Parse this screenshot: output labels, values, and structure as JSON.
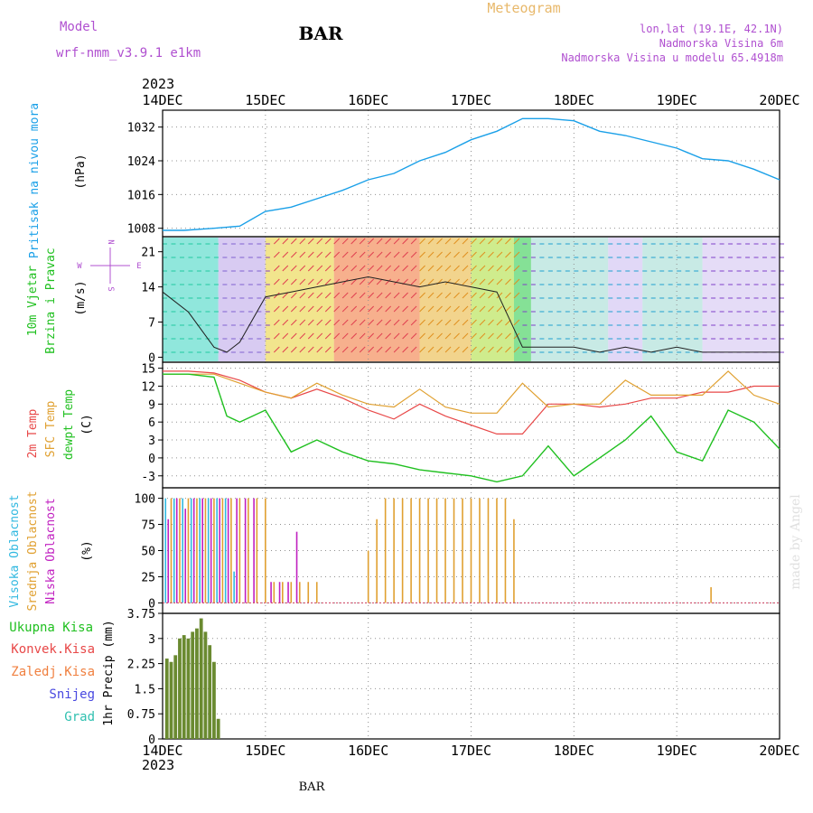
{
  "header": {
    "title": "Meteogram",
    "station": "BAR",
    "model_label": "Model",
    "model_name": "wrf-nmm_v3.9.1  e1km",
    "coords": "lon,lat (19.1E, 42.1N)",
    "elevation": "Nadmorska Visina 6m",
    "model_elevation": "Nadmorska Visina u modelu 65.4918m",
    "year": "2023",
    "footer_station": "BAR",
    "watermark": "made by Angel"
  },
  "colors": {
    "title": "#e8b86a",
    "model": "#b050d0",
    "pressure": "#1aa0e8",
    "t2m": "#e84848",
    "tsfc": "#e0a030",
    "dewpt": "#20c020",
    "cloud_high": "#30b8e0",
    "cloud_mid": "#e0a030",
    "cloud_low": "#c020c0",
    "precip": "#6a8a30",
    "grid": "#909090"
  },
  "chart_data": [
    {
      "type": "line",
      "panel": "pressure",
      "ylabel_1": "Pritisak na nivou mora",
      "ylabel_2": "(hPa)",
      "yticks": [
        "1008",
        "1016",
        "1024",
        "1032"
      ],
      "ylim": [
        1006,
        1036
      ],
      "x_days": [
        "14DEC",
        "15DEC",
        "16DEC",
        "17DEC",
        "18DEC",
        "19DEC",
        "20DEC"
      ],
      "series": [
        {
          "x_hours": [
            0,
            5,
            12,
            18,
            24,
            30,
            36,
            42,
            48,
            54,
            60,
            66,
            72,
            78,
            84,
            90,
            96,
            102,
            108,
            114,
            120,
            126,
            132,
            138,
            144
          ],
          "values": [
            1007.5,
            1007.5,
            1008,
            1008.5,
            1012,
            1013,
            1015,
            1017,
            1019.5,
            1021,
            1024,
            1026,
            1029,
            1031,
            1034,
            1034,
            1033.5,
            1031,
            1030,
            1028.5,
            1027,
            1024.5,
            1024,
            1022,
            1019.5
          ]
        }
      ]
    },
    {
      "type": "line",
      "panel": "wind",
      "ylabel_1": "10m Vjetar",
      "ylabel_2": "Brzina i Pravac",
      "ylabel_3": "(m/s)",
      "compass": [
        "N",
        "S",
        "W",
        "E"
      ],
      "yticks": [
        "0",
        "7",
        "14",
        "21"
      ],
      "ylim": [
        -1,
        24
      ],
      "series": [
        {
          "name": "speed",
          "x_hours": [
            0,
            6,
            12,
            15,
            18,
            24,
            30,
            36,
            42,
            48,
            54,
            60,
            66,
            72,
            78,
            84,
            90,
            96,
            102,
            108,
            114,
            120,
            126,
            132,
            138,
            144
          ],
          "values": [
            13,
            9,
            2,
            1,
            3,
            12,
            13,
            14,
            15,
            16,
            15,
            14,
            15,
            14,
            13,
            2,
            2,
            2,
            1,
            2,
            1,
            2,
            1,
            1,
            1,
            1
          ]
        }
      ]
    },
    {
      "type": "line",
      "panel": "temperature",
      "ylabel_1": "2m Temp",
      "ylabel_2": "SFC Temp",
      "ylabel_3": "dewpt Temp",
      "ylabel_4": "(C)",
      "yticks": [
        "-3",
        "0",
        "3",
        "6",
        "9",
        "12",
        "15"
      ],
      "ylim": [
        -5,
        16
      ],
      "series": [
        {
          "name": "2m Temp",
          "x_hours": [
            0,
            6,
            12,
            18,
            24,
            30,
            36,
            42,
            48,
            54,
            60,
            66,
            72,
            78,
            84,
            90,
            96,
            102,
            108,
            114,
            120,
            126,
            132,
            138,
            144
          ],
          "values": [
            14.5,
            14.5,
            14.2,
            13,
            11,
            10,
            11.5,
            10,
            8,
            6.5,
            9,
            7,
            5.5,
            4,
            4,
            9,
            9,
            8.5,
            9,
            10,
            10,
            11,
            11,
            12,
            12
          ]
        },
        {
          "name": "SFC Temp",
          "x_hours": [
            0,
            6,
            12,
            18,
            24,
            30,
            36,
            42,
            48,
            54,
            60,
            66,
            72,
            78,
            84,
            90,
            96,
            102,
            108,
            114,
            120,
            126,
            132,
            138,
            144
          ],
          "values": [
            14,
            14,
            14,
            12.5,
            11,
            10,
            12.5,
            10.5,
            9,
            8.5,
            11.5,
            8.5,
            7.5,
            7.5,
            12.5,
            8.5,
            9,
            9,
            13,
            10.5,
            10.5,
            10.5,
            14.5,
            10.5,
            9
          ]
        },
        {
          "name": "dewpt Temp",
          "x_hours": [
            0,
            6,
            12,
            15,
            18,
            24,
            30,
            36,
            42,
            48,
            54,
            60,
            66,
            72,
            78,
            84,
            90,
            96,
            102,
            108,
            114,
            120,
            126,
            132,
            138,
            144
          ],
          "values": [
            14,
            14,
            13.5,
            7,
            6,
            8,
            1,
            3,
            1,
            -0.5,
            -1,
            -2,
            -2.5,
            -3,
            -4,
            -3,
            2,
            -3,
            0,
            3,
            7,
            1,
            -0.5,
            8,
            6,
            1.5
          ]
        }
      ]
    },
    {
      "type": "bar",
      "panel": "clouds",
      "ylabel_1": "Visoka Oblacnost",
      "ylabel_2": "Srednja Oblacnost",
      "ylabel_3": "Niska Oblacnost",
      "ylabel_4": "(%)",
      "yticks": [
        "0",
        "25",
        "50",
        "75",
        "100"
      ],
      "ylim": [
        0,
        100
      ],
      "series": [
        {
          "name": "Visoka Oblacnost",
          "x_hours": [
            1,
            3,
            5,
            7,
            9,
            11,
            13,
            15,
            17
          ],
          "values": [
            100,
            100,
            100,
            100,
            100,
            100,
            100,
            100,
            30
          ]
        },
        {
          "name": "Srednja Oblacnost",
          "x_hours": [
            2,
            4,
            6,
            8,
            10,
            12,
            14,
            16,
            18,
            20,
            22,
            24,
            26,
            28,
            30,
            32,
            34,
            36,
            48,
            50,
            52,
            54,
            56,
            58,
            60,
            62,
            64,
            66,
            68,
            70,
            72,
            74,
            76,
            78,
            80,
            82,
            128
          ],
          "values": [
            100,
            100,
            100,
            100,
            100,
            100,
            100,
            100,
            100,
            100,
            100,
            100,
            20,
            20,
            20,
            20,
            20,
            20,
            50,
            80,
            100,
            100,
            100,
            100,
            100,
            100,
            100,
            100,
            100,
            100,
            100,
            100,
            100,
            100,
            100,
            80,
            15
          ]
        },
        {
          "name": "Niska Oblacnost",
          "x_hours": [
            1,
            3,
            5,
            7,
            9,
            11,
            13,
            15,
            17,
            19,
            21,
            25,
            27,
            29,
            31
          ],
          "values": [
            80,
            100,
            90,
            100,
            100,
            100,
            100,
            100,
            100,
            100,
            100,
            20,
            20,
            20,
            68
          ],
          "cap": 100
        }
      ]
    },
    {
      "type": "bar",
      "panel": "precipitation",
      "legend": [
        "Ukupna Kisa",
        "Konvek.Kisa",
        "Zaledj.Kisa",
        "Snijeg",
        "Grad"
      ],
      "ylabel": "1hr Precip (mm)",
      "yticks": [
        "0",
        "0.75",
        "1.5",
        "2.25",
        "3",
        "3.75"
      ],
      "ylim": [
        0,
        3.75
      ],
      "series": [
        {
          "name": "Ukupna Kisa",
          "x_hours": [
            1,
            2,
            3,
            4,
            5,
            6,
            7,
            8,
            9,
            10,
            11,
            12,
            13
          ],
          "values": [
            2.4,
            2.3,
            2.5,
            3.0,
            3.1,
            3.0,
            3.2,
            3.3,
            3.6,
            3.2,
            2.8,
            2.3,
            0.6
          ]
        }
      ]
    }
  ]
}
